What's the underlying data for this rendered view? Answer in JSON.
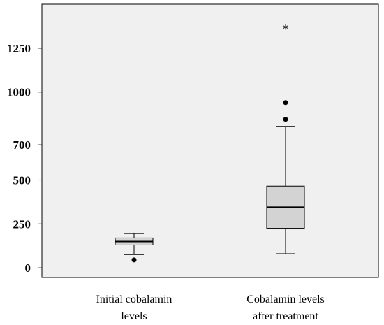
{
  "chart_data": {
    "type": "box",
    "categories": [
      [
        "Initial cobalamin",
        "levels"
      ],
      [
        "Cobalamin levels",
        "after treatment"
      ]
    ],
    "y_ticks": [
      0,
      250,
      500,
      700,
      1000,
      1250
    ],
    "ylim": [
      -55,
      1500
    ],
    "grid": false,
    "boxes": [
      {
        "whisker_low": 75,
        "q1": 130,
        "median": 150,
        "q3": 170,
        "whisker_high": 195,
        "outliers": [
          {
            "value": 45,
            "marker": "dot"
          }
        ]
      },
      {
        "whisker_low": 80,
        "q1": 225,
        "median": 345,
        "q3": 465,
        "whisker_high": 805,
        "outliers": [
          {
            "value": 845,
            "marker": "dot"
          },
          {
            "value": 940,
            "marker": "dot"
          },
          {
            "value": 1375,
            "marker": "star",
            "symbol": "*"
          }
        ]
      }
    ],
    "colors": {
      "plot_bg": "#f0f0f0",
      "box_fill": "#d3d3d3",
      "stroke": "#000000"
    }
  }
}
